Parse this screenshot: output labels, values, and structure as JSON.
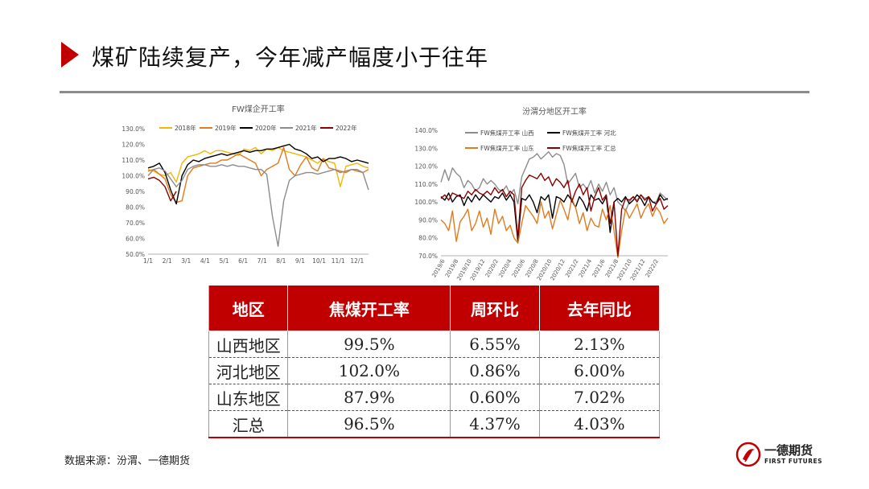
{
  "page": {
    "title": "煤矿陆续复产，今年减产幅度小于往年"
  },
  "source": "数据来源：汾渭、一德期货",
  "logo": {
    "name": "一德期货",
    "subtitle": "FIRST FUTURES"
  },
  "colors": {
    "accent": "#c00000",
    "rule": "#8c8c8c"
  },
  "chart_data": [
    {
      "type": "line",
      "title": "FW煤企开工率",
      "ylim": [
        50,
        130
      ],
      "yticks": [
        "50.0%",
        "60.0%",
        "70.0%",
        "80.0%",
        "90.0%",
        "100.0%",
        "110.0%",
        "120.0%",
        "130.0%"
      ],
      "xticks": [
        "1/1",
        "2/1",
        "3/1",
        "4/1",
        "5/1",
        "6/1",
        "7/1",
        "8/1",
        "9/1",
        "10/1",
        "11/1",
        "12/1"
      ],
      "legend_position": "top",
      "grid": false,
      "series": [
        {
          "name": "2018年",
          "color": "#f2b705",
          "values": [
            104,
            103,
            101,
            100,
            102,
            96,
            108,
            112,
            113,
            114,
            116,
            114,
            116,
            116,
            115,
            114,
            113,
            117,
            116,
            118,
            114,
            117,
            116,
            118,
            116,
            115,
            114,
            113,
            112,
            110,
            108,
            111,
            109,
            108,
            93,
            106,
            107,
            108,
            106,
            105
          ]
        },
        {
          "name": "2019年",
          "color": "#e07b1f",
          "values": [
            103,
            104,
            101,
            98,
            88,
            83,
            84,
            100,
            105,
            106,
            107,
            108,
            108,
            110,
            110,
            112,
            114,
            112,
            110,
            108,
            100,
            104,
            106,
            108,
            118,
            104,
            100,
            107,
            112,
            105,
            103,
            111,
            105,
            104,
            103,
            102,
            104,
            103,
            102,
            104
          ]
        },
        {
          "name": "2020年",
          "color": "#000000",
          "values": [
            105,
            106,
            108,
            102,
            91,
            82,
            100,
            107,
            110,
            109,
            111,
            112,
            113,
            114,
            113,
            114,
            115,
            116,
            115,
            116,
            116,
            117,
            117,
            118,
            119,
            120,
            117,
            116,
            114,
            111,
            112,
            109,
            111,
            111,
            112,
            111,
            109,
            110,
            109,
            108
          ]
        },
        {
          "name": "2021年",
          "color": "#8c8c8c",
          "values": [
            100,
            104,
            105,
            103,
            98,
            93,
            97,
            104,
            106,
            107,
            107,
            106,
            106,
            107,
            106,
            107,
            106,
            106,
            105,
            104,
            104,
            101,
            74,
            55,
            84,
            97,
            100,
            101,
            102,
            102,
            101,
            102,
            103,
            104,
            102,
            103,
            104,
            104,
            102,
            91
          ]
        },
        {
          "name": "2022年",
          "color": "#8b0000",
          "values": [
            98,
            99,
            97,
            93,
            84,
            90,
            null,
            null,
            null,
            null,
            null,
            null,
            null,
            null,
            null,
            null,
            null,
            null,
            null,
            null,
            null,
            null,
            null,
            null,
            null,
            null,
            null,
            null,
            null,
            null,
            null,
            null,
            null,
            null,
            null,
            null,
            null,
            null,
            null,
            null
          ]
        }
      ]
    },
    {
      "type": "line",
      "title": "汾渭分地区开工率",
      "ylim": [
        70,
        140
      ],
      "yticks": [
        "70.0%",
        "80.0%",
        "90.0%",
        "100.0%",
        "110.0%",
        "120.0%",
        "130.0%",
        "140.0%"
      ],
      "xticks": [
        "2019/6",
        "2019/8",
        "2019/10",
        "2019/12",
        "2020/2",
        "2020/4",
        "2020/6",
        "2020/8",
        "2020/10",
        "2020/12",
        "2021/2",
        "2021/4",
        "2021/6",
        "2021/8",
        "2021/10",
        "2021/12",
        "2022/2"
      ],
      "legend_position": "top",
      "grid": false,
      "series": [
        {
          "name": "FW焦煤开工率  山西",
          "color": "#8c8c8c",
          "values": [
            111,
            118,
            112,
            119,
            116,
            114,
            108,
            112,
            110,
            106,
            108,
            113,
            110,
            112,
            110,
            107,
            106,
            109,
            104,
            107,
            99,
            114,
            119,
            124,
            125,
            127,
            124,
            126,
            128,
            125,
            127,
            126,
            121,
            110,
            113,
            116,
            108,
            110,
            107,
            112,
            105,
            110,
            106,
            111,
            104,
            108,
            100,
            98,
            95,
            100,
            103,
            101,
            104,
            102,
            103,
            100,
            100,
            105,
            103,
            101
          ]
        },
        {
          "name": "FW焦煤开工率  河北",
          "color": "#000000",
          "values": [
            103,
            101,
            105,
            100,
            103,
            104,
            98,
            103,
            100,
            104,
            101,
            104,
            102,
            100,
            103,
            102,
            105,
            101,
            104,
            100,
            78,
            102,
            101,
            104,
            100,
            94,
            103,
            101,
            104,
            91,
            103,
            102,
            100,
            104,
            101,
            97,
            103,
            100,
            95,
            104,
            101,
            102,
            99,
            103,
            83,
            100,
            102,
            100,
            103,
            99,
            101,
            104,
            102,
            98,
            103,
            100,
            99,
            104,
            101,
            102
          ]
        },
        {
          "name": "FW焦煤开工率  山东",
          "color": "#e07b1f",
          "values": [
            90,
            88,
            84,
            95,
            78,
            89,
            92,
            96,
            84,
            88,
            95,
            86,
            91,
            82,
            96,
            88,
            92,
            84,
            87,
            80,
            77,
            88,
            98,
            95,
            92,
            88,
            100,
            91,
            95,
            85,
            93,
            101,
            96,
            90,
            102,
            97,
            88,
            94,
            84,
            91,
            87,
            86,
            96,
            90,
            98,
            84,
            69,
            84,
            96,
            91,
            95,
            99,
            91,
            96,
            99,
            92,
            97,
            94,
            88,
            91
          ]
        },
        {
          "name": "FW焦煤开工率  汇总",
          "color": "#8b0000",
          "values": [
            102,
            104,
            101,
            105,
            104,
            103,
            102,
            106,
            104,
            107,
            105,
            104,
            106,
            104,
            108,
            105,
            107,
            103,
            106,
            104,
            80,
            108,
            112,
            115,
            114,
            113,
            116,
            112,
            114,
            109,
            113,
            111,
            108,
            112,
            100,
            106,
            110,
            104,
            108,
            95,
            103,
            108,
            101,
            104,
            88,
            100,
            70,
            96,
            102,
            101,
            103,
            100,
            104,
            101,
            103,
            95,
            99,
            102,
            96,
            98
          ]
        }
      ]
    }
  ],
  "table": {
    "headers": [
      "地区",
      "焦煤开工率",
      "周环比",
      "去年同比"
    ],
    "rows": [
      [
        "山西地区",
        "99.5%",
        "6.55%",
        "2.13%"
      ],
      [
        "河北地区",
        "102.0%",
        "0.86%",
        "6.00%"
      ],
      [
        "山东地区",
        "87.9%",
        "0.60%",
        "7.02%"
      ],
      [
        "汇总",
        "96.5%",
        "4.37%",
        "4.03%"
      ]
    ]
  }
}
